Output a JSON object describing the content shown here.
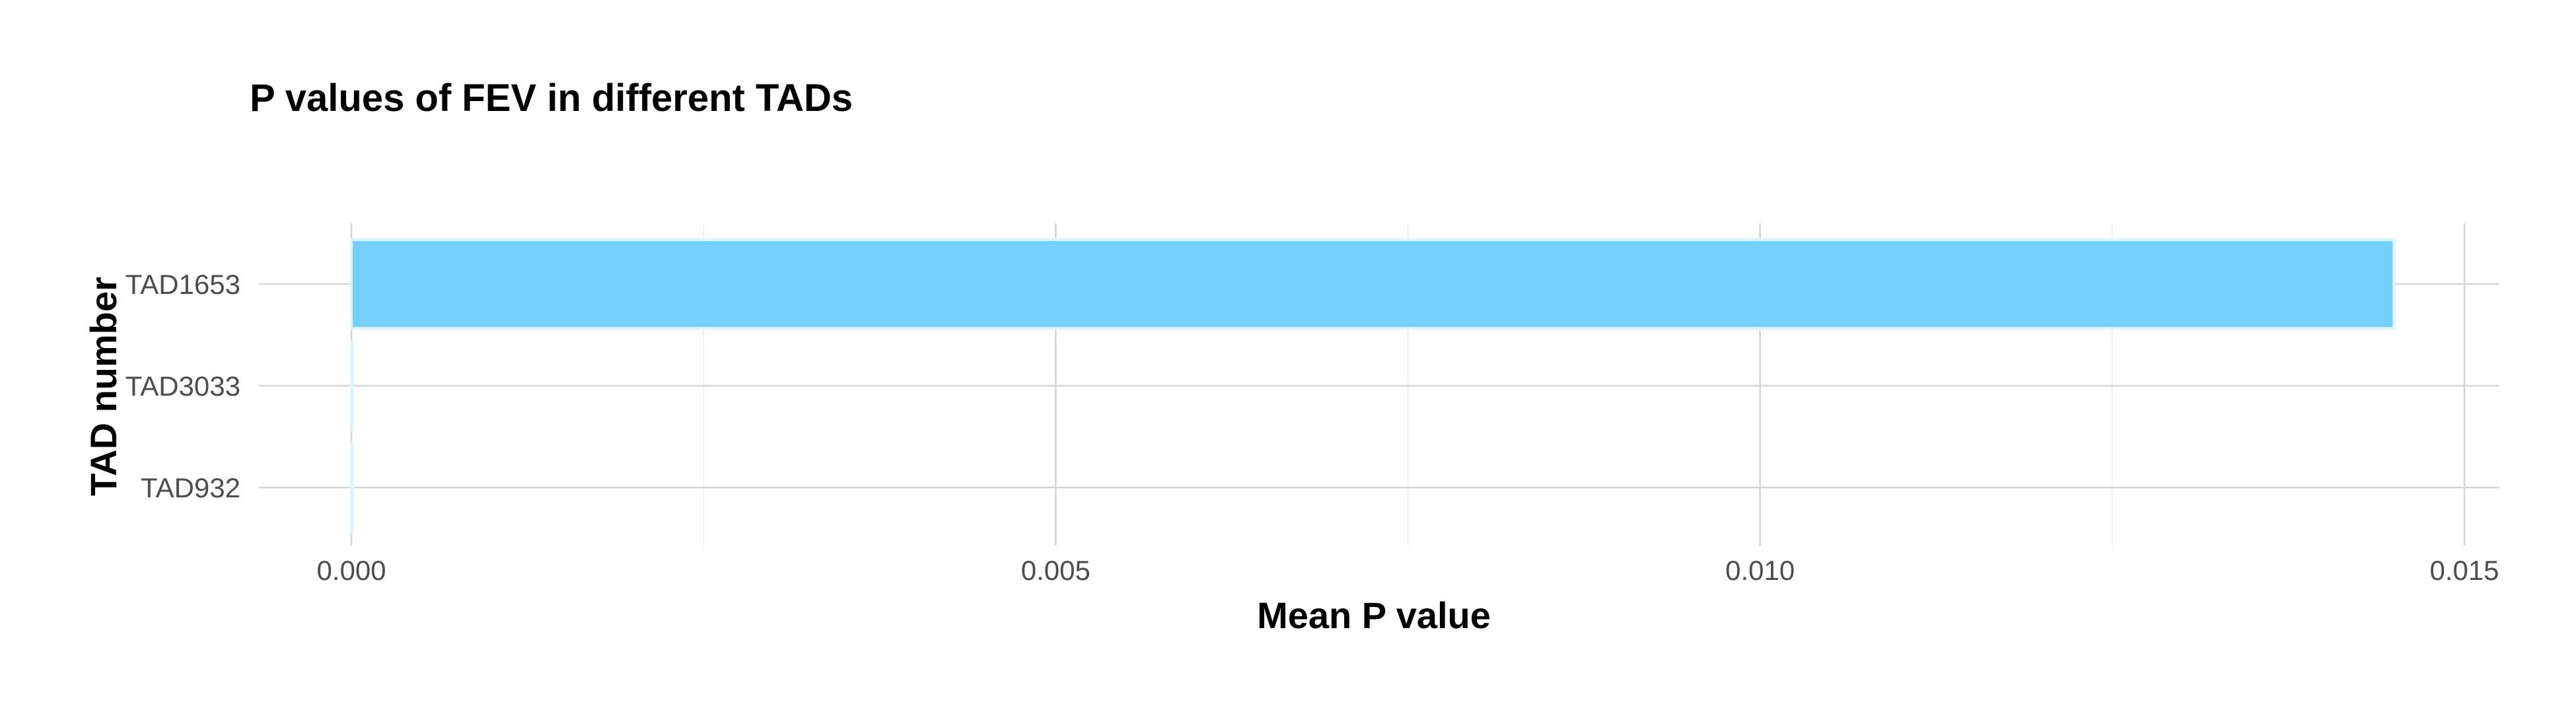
{
  "chart_data": {
    "type": "bar",
    "orientation": "horizontal",
    "title": "P values of FEV in different TADs",
    "xlabel": "Mean P value",
    "ylabel": "TAD number",
    "categories": [
      "TAD1653",
      "TAD3033",
      "TAD932"
    ],
    "values": [
      0.0145,
      0.0,
      0.0
    ],
    "xlim": [
      0.0,
      0.015
    ],
    "x_ticks": [
      "0.000",
      "0.005",
      "0.010",
      "0.015"
    ],
    "grid": true,
    "legend": "none",
    "bar_color": "#75d0fb",
    "bar_outline_color": "#ddf3fd"
  }
}
